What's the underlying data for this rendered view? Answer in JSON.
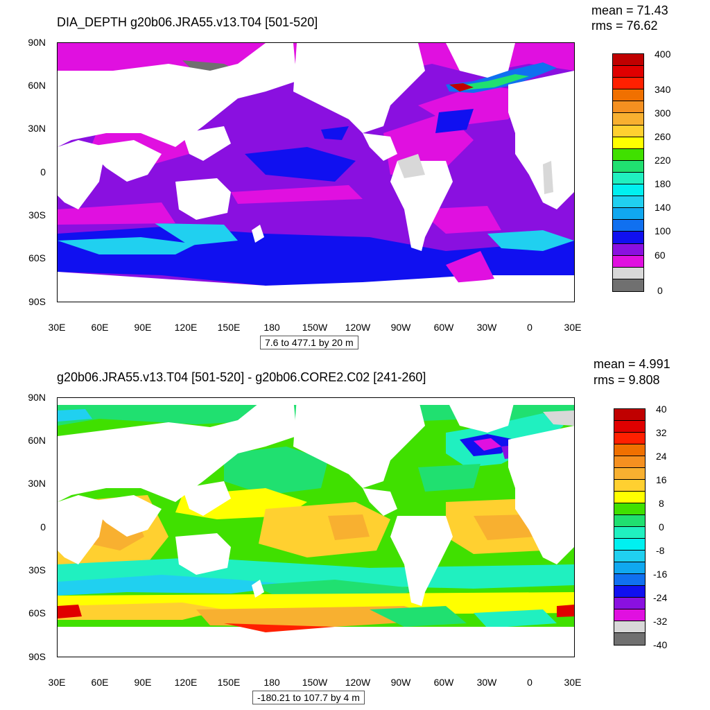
{
  "panel1": {
    "title": "DIA_DEPTH g20b06.JRA55.v13.T04 [501-520]",
    "mean": "mean = 71.43",
    "rms": "rms = 76.62",
    "range": "7.6 to 477.1 by 20 m",
    "lat_labels": [
      "90N",
      "60N",
      "30N",
      "0",
      "30S",
      "60S",
      "90S"
    ],
    "lon_labels": [
      "30E",
      "60E",
      "90E",
      "120E",
      "150E",
      "180",
      "150W",
      "120W",
      "90W",
      "60W",
      "30W",
      "0",
      "30E"
    ],
    "colorbar": {
      "colors": [
        "#c00000",
        "#e00000",
        "#ff2000",
        "#f07000",
        "#f59020",
        "#f8b030",
        "#ffd030",
        "#ffff00",
        "#40e000",
        "#20e070",
        "#20f0c0",
        "#00f0f0",
        "#20d0f0",
        "#10a8f0",
        "#1070f0",
        "#1010f0",
        "#8a10e0",
        "#e010e0",
        "#d8d8d8",
        "#707070"
      ],
      "labels": [
        "400",
        "340",
        "300",
        "260",
        "220",
        "180",
        "140",
        "100",
        "60",
        "0"
      ]
    }
  },
  "panel2": {
    "title": "g20b06.JRA55.v13.T04 [501-520] - g20b06.CORE2.C02 [241-260]",
    "mean": "mean = 4.991",
    "rms": "rms = 9.808",
    "range": "-180.21 to 107.7 by 4 m",
    "lat_labels": [
      "90N",
      "60N",
      "30N",
      "0",
      "30S",
      "60S",
      "90S"
    ],
    "lon_labels": [
      "30E",
      "60E",
      "90E",
      "120E",
      "150E",
      "180",
      "150W",
      "120W",
      "90W",
      "60W",
      "30W",
      "0",
      "30E"
    ],
    "colorbar": {
      "colors": [
        "#c00000",
        "#e00000",
        "#ff2000",
        "#f07000",
        "#f59020",
        "#f8b030",
        "#ffd030",
        "#ffff00",
        "#40e000",
        "#20e070",
        "#20f0c0",
        "#00f0f0",
        "#20d0f0",
        "#10a8f0",
        "#1070f0",
        "#1010f0",
        "#8a10e0",
        "#e010e0",
        "#d8d8d8",
        "#707070"
      ],
      "labels": [
        "40",
        "32",
        "24",
        "16",
        "8",
        "0",
        "-8",
        "-16",
        "-24",
        "-32",
        "-40"
      ]
    }
  }
}
